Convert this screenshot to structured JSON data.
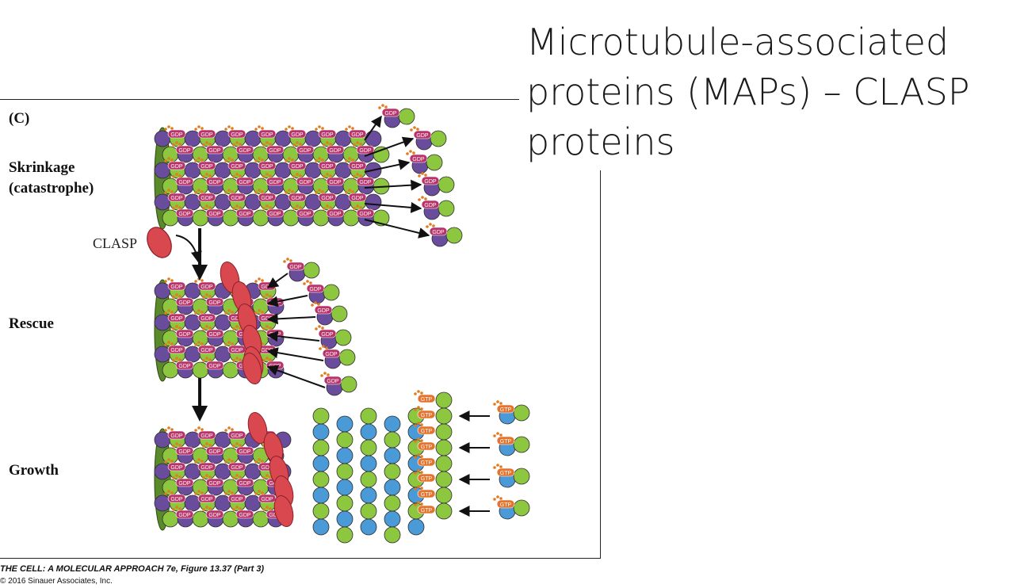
{
  "slide": {
    "title_lines": [
      "Microtubule-associated",
      "proteins (MAPs) – CLASP",
      "proteins"
    ]
  },
  "figure": {
    "panel_letter": "(C)",
    "stages": {
      "shrinkage": [
        "Skrinkage",
        "(catastrophe)"
      ],
      "rescue": "Rescue",
      "growth": "Growth"
    },
    "protein_label": "CLASP",
    "subunit_labels": {
      "gdp": "GDP",
      "gtp": "GTP"
    },
    "colors": {
      "alpha_tubulin": "#8dc63f",
      "beta_tubulin_gdp": "#6a4c9c",
      "beta_tubulin_gtp": "#4a9ad8",
      "clasp": "#d9474f",
      "nucleotide_tag": "#b8336a",
      "gtp_tag": "#e5732e"
    }
  },
  "caption": {
    "title": "THE CELL: A MOLECULAR APPROACH 7e, Figure 13.37 (Part 3)",
    "copyright": "© 2016 Sinauer Associates, Inc."
  }
}
